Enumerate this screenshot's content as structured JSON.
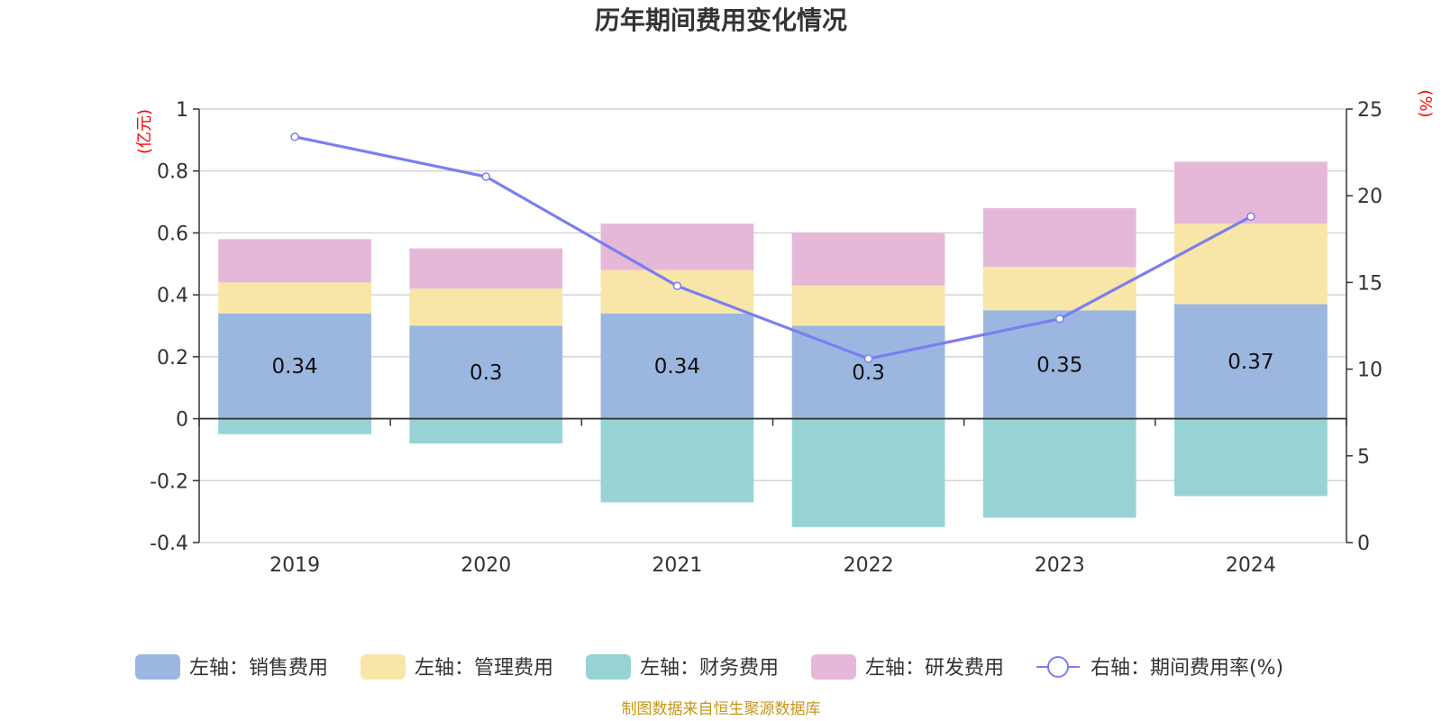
{
  "chart_data": {
    "type": "bar",
    "title": "历年期间费用变化情况",
    "categories": [
      "2019",
      "2020",
      "2021",
      "2022",
      "2023",
      "2024"
    ],
    "left_axis": {
      "unit": "(亿元)",
      "ylim": [
        -0.4,
        1
      ],
      "ticks": [
        -0.4,
        -0.2,
        0,
        0.2,
        0.4,
        0.6,
        0.8,
        1
      ]
    },
    "right_axis": {
      "unit": "(%)",
      "ylim": [
        0,
        25
      ],
      "ticks": [
        0,
        5,
        10,
        15,
        20,
        25
      ]
    },
    "grid": true,
    "legend_position": "bottom",
    "series": [
      {
        "name": "左轴：销售费用",
        "kind": "stacked-bar",
        "axis": "left",
        "color": "#9bb7e0",
        "values": [
          0.34,
          0.3,
          0.34,
          0.3,
          0.35,
          0.37
        ],
        "labels": [
          "0.34",
          "0.3",
          "0.34",
          "0.3",
          "0.35",
          "0.37"
        ]
      },
      {
        "name": "左轴：管理费用",
        "kind": "stacked-bar",
        "axis": "left",
        "color": "#f7e6a8",
        "values": [
          0.1,
          0.12,
          0.14,
          0.13,
          0.14,
          0.26
        ]
      },
      {
        "name": "左轴：财务费用",
        "kind": "stacked-bar",
        "axis": "left",
        "color": "#97d3d4",
        "values": [
          -0.05,
          -0.08,
          -0.27,
          -0.35,
          -0.32,
          -0.25
        ]
      },
      {
        "name": "左轴：研发费用",
        "kind": "stacked-bar",
        "axis": "left",
        "color": "#e6b8d8",
        "values": [
          0.14,
          0.13,
          0.15,
          0.17,
          0.19,
          0.2
        ]
      },
      {
        "name": "右轴：期间费用率(%)",
        "kind": "line",
        "axis": "right",
        "color": "#7b7ef0",
        "values": [
          23.4,
          21.1,
          14.8,
          10.6,
          12.9,
          18.8
        ]
      }
    ],
    "source": "制图数据来自恒生聚源数据库"
  }
}
